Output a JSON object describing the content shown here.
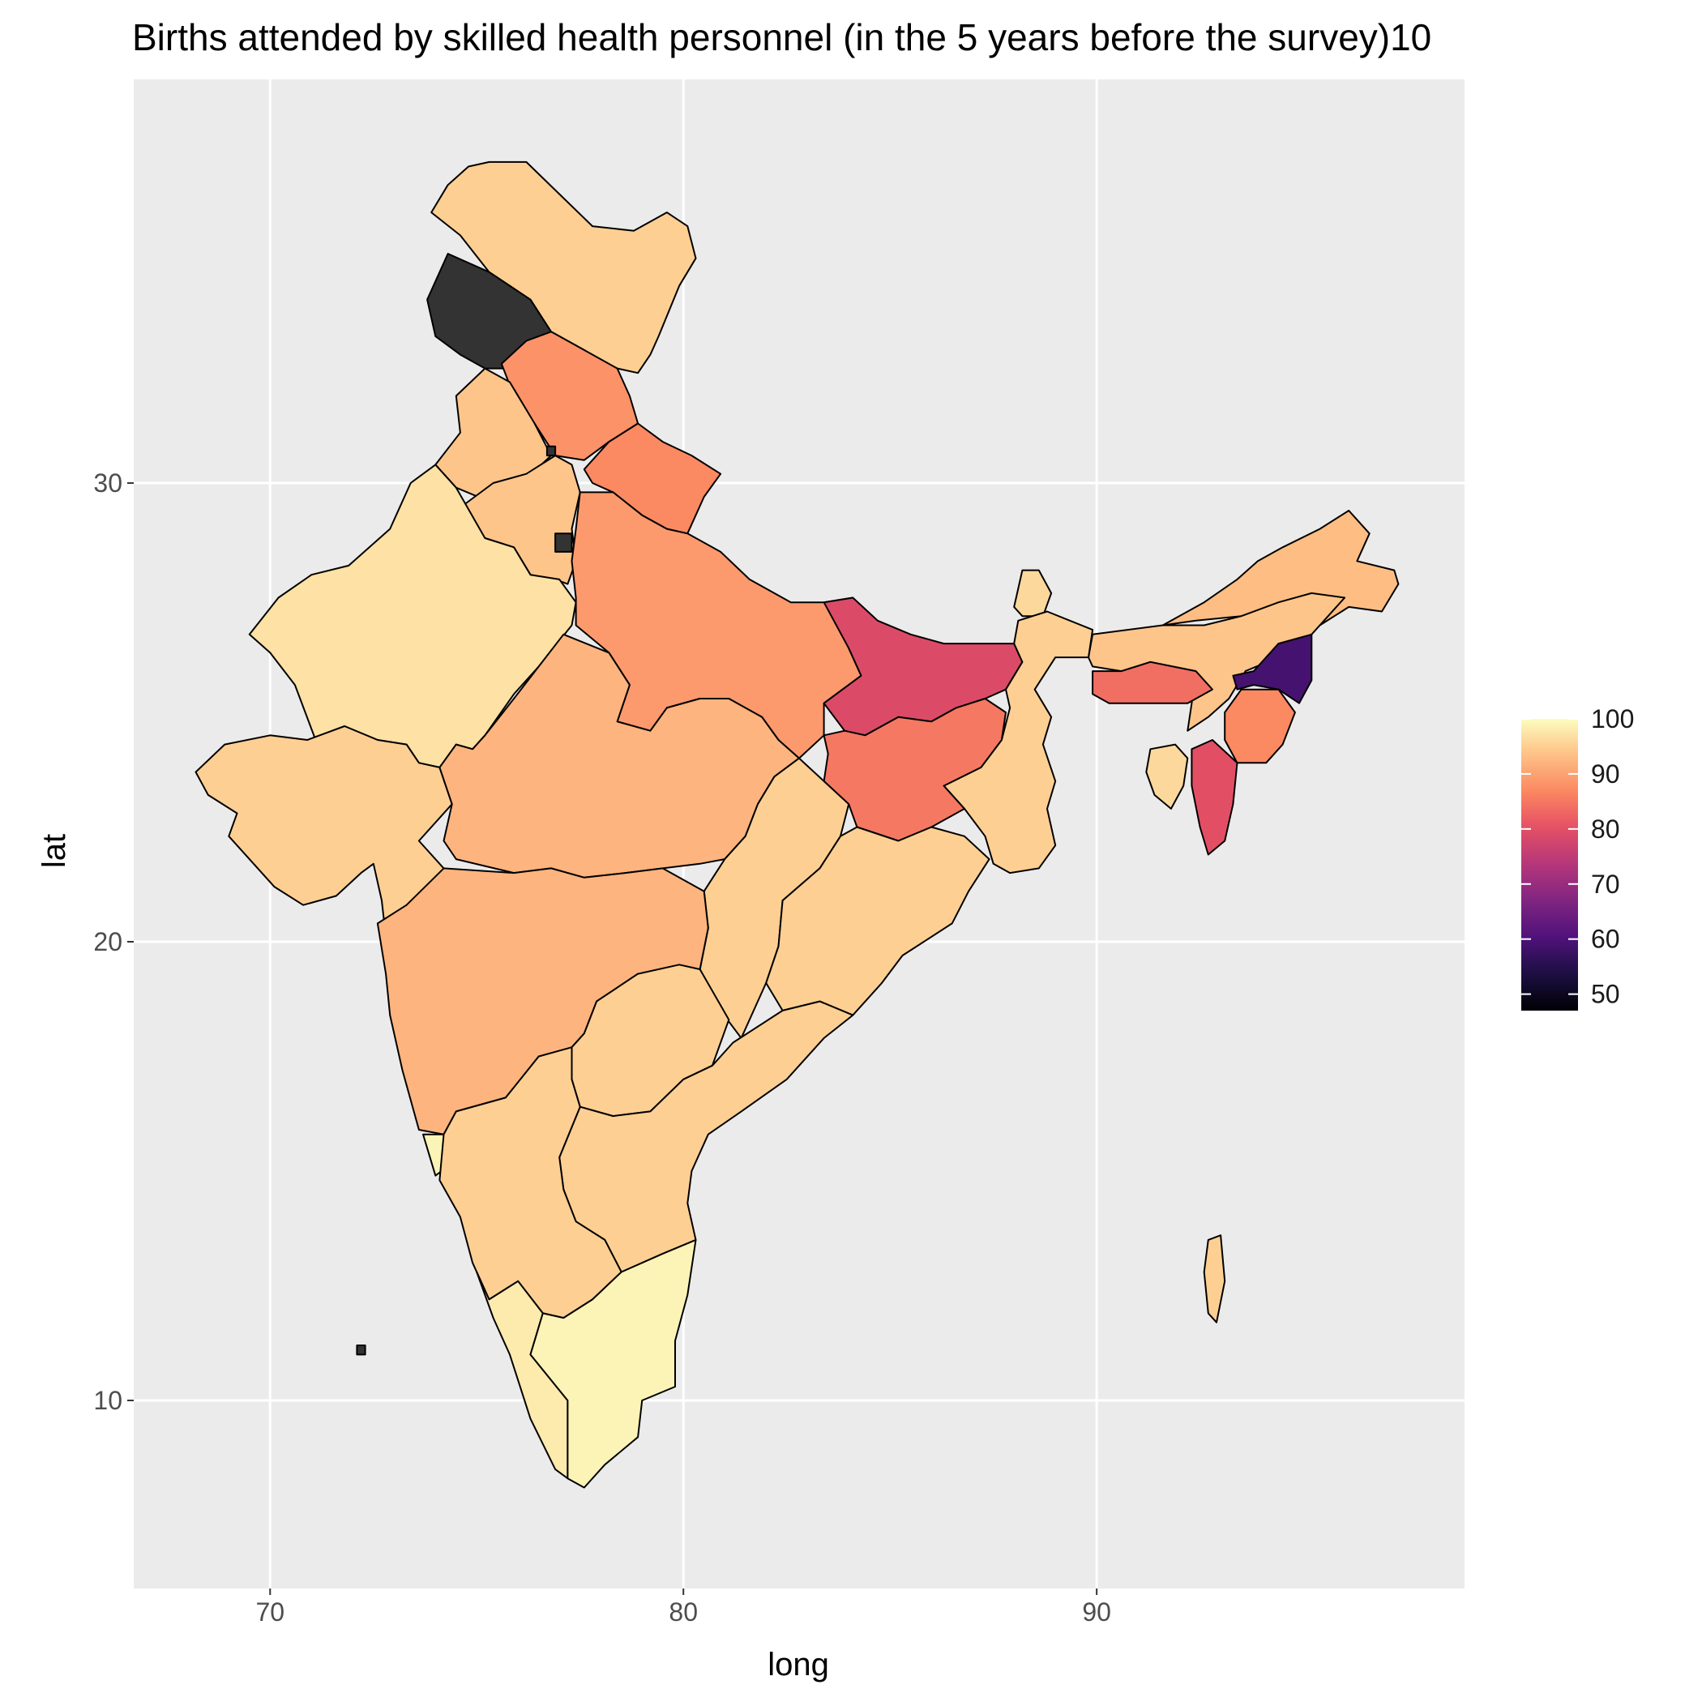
{
  "chart_data": {
    "type": "choropleth",
    "title": "Births attended by skilled health personnel (in the 5 years before the survey)10",
    "xlabel": "long",
    "ylabel": "lat",
    "x_ticks": [
      70,
      80,
      90
    ],
    "y_ticks": [
      10,
      20,
      30
    ],
    "xlim": [
      66.7,
      98.9
    ],
    "ylim": [
      5.9,
      38.8
    ],
    "grid": true,
    "legend": {
      "placement": "right",
      "range": [
        47,
        100
      ],
      "ticks": [
        100,
        90,
        80,
        70,
        60,
        50
      ],
      "palette": "magma"
    },
    "na_color": "#333333",
    "regions": [
      {
        "name": "Ladakh",
        "value": 95
      },
      {
        "name": "Jammu and Kashmir",
        "value": null
      },
      {
        "name": "Himachal Pradesh",
        "value": 88
      },
      {
        "name": "Punjab",
        "value": 94
      },
      {
        "name": "Chandigarh",
        "value": null
      },
      {
        "name": "Haryana",
        "value": 94
      },
      {
        "name": "Delhi",
        "value": null
      },
      {
        "name": "Uttarakhand",
        "value": 87
      },
      {
        "name": "Rajasthan",
        "value": 97
      },
      {
        "name": "Uttar Pradesh",
        "value": 89
      },
      {
        "name": "Bihar",
        "value": 79
      },
      {
        "name": "Sikkim",
        "value": 96
      },
      {
        "name": "Arunachal Pradesh",
        "value": 93
      },
      {
        "name": "Assam",
        "value": 94
      },
      {
        "name": "Nagaland",
        "value": 59
      },
      {
        "name": "Meghalaya",
        "value": 84
      },
      {
        "name": "Manipur",
        "value": 87
      },
      {
        "name": "Mizoram",
        "value": 80
      },
      {
        "name": "Tripura",
        "value": 96
      },
      {
        "name": "West Bengal",
        "value": 95
      },
      {
        "name": "Jharkhand",
        "value": 85
      },
      {
        "name": "Gujarat",
        "value": 95
      },
      {
        "name": "Madhya Pradesh",
        "value": 92
      },
      {
        "name": "Chhattisgarh",
        "value": 95
      },
      {
        "name": "Odisha",
        "value": 95
      },
      {
        "name": "Maharashtra",
        "value": 92
      },
      {
        "name": "Telangana",
        "value": 95
      },
      {
        "name": "Andhra Pradesh",
        "value": 95
      },
      {
        "name": "Goa",
        "value": 99
      },
      {
        "name": "Karnataka",
        "value": 95
      },
      {
        "name": "Kerala",
        "value": 98
      },
      {
        "name": "Tamil Nadu",
        "value": 99
      },
      {
        "name": "Lakshadweep",
        "value": null
      },
      {
        "name": "Andaman and Nicobar Islands",
        "value": 95
      }
    ]
  }
}
